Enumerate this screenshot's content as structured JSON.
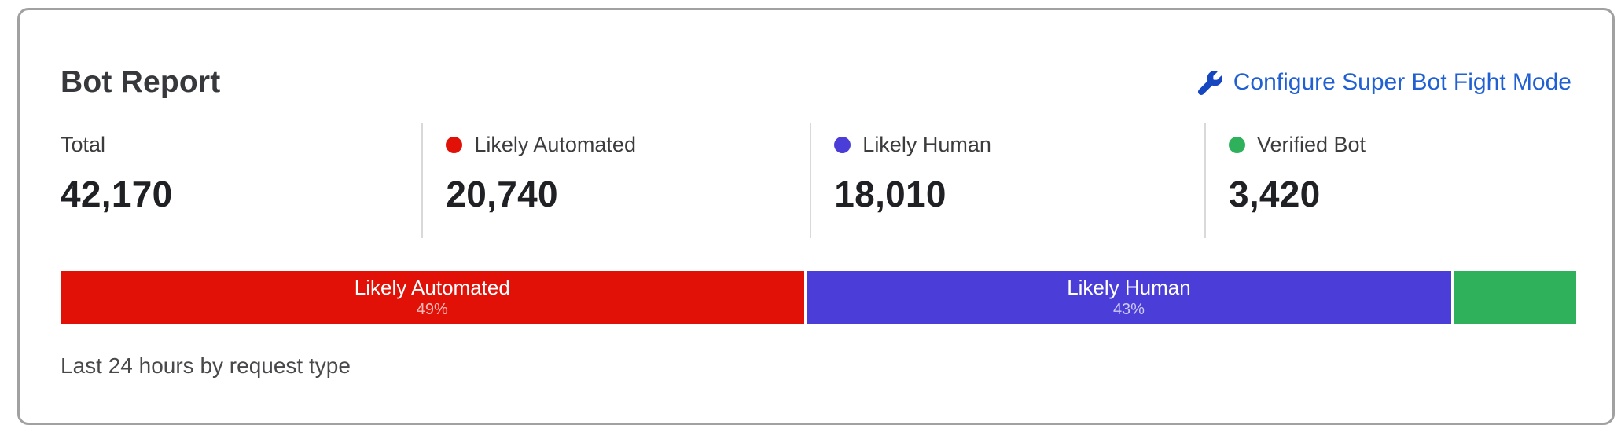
{
  "card": {
    "title": "Bot Report",
    "action": {
      "label": "Configure Super Bot Fight Mode",
      "icon": "wrench-icon",
      "color": "#2160d3",
      "icon_color": "#1747c0"
    },
    "caption": "Last 24 hours by request type"
  },
  "stats": [
    {
      "label": "Total",
      "value": "42,170",
      "dot_color": null
    },
    {
      "label": "Likely Automated",
      "value": "20,740",
      "dot_color": "#e21107"
    },
    {
      "label": "Likely Human",
      "value": "18,010",
      "dot_color": "#4a3dd8"
    },
    {
      "label": "Verified Bot",
      "value": "3,420",
      "dot_color": "#2fb15c"
    }
  ],
  "chart_data": {
    "type": "bar",
    "subtype": "stacked-horizontal-percentage",
    "title": "Bot Report",
    "period_label": "Last 24 hours by request type",
    "total": 42170,
    "categories": [
      "Likely Automated",
      "Likely Human",
      "Verified Bot"
    ],
    "values": [
      20740,
      18010,
      3420
    ],
    "segments": [
      {
        "label": "Likely Automated",
        "value": 20740,
        "percent": 49.2,
        "pct_label": "49%",
        "color": "#e21107",
        "show_label": true
      },
      {
        "label": "Likely Human",
        "value": 18010,
        "percent": 42.7,
        "pct_label": "43%",
        "color": "#4a3dd8",
        "show_label": true
      },
      {
        "label": "Verified Bot",
        "value": 3420,
        "percent": 8.1,
        "pct_label": "8%",
        "color": "#2fb15c",
        "show_label": false
      }
    ],
    "legend_position": "top-stats-row",
    "grid": false
  },
  "colors": {
    "card_border": "#a1a1a1",
    "divider": "#d9d9d9",
    "title_text": "#36383c",
    "stat_value_text": "#202124",
    "caption_text": "#49494b"
  }
}
